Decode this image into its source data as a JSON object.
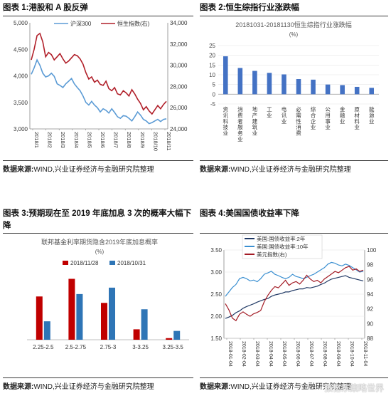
{
  "figures": {
    "f1": {
      "title": "图表 1:港股和 A 股反弹",
      "source_label": "数据来源:",
      "source_text": "WIND,兴业证券经济与金融研究院整理"
    },
    "f2": {
      "title": "图表 2:恒生综指行业涨跌幅",
      "source_label": "数据来源:",
      "source_text": "WIND,兴业证券经济与金融研究院整理"
    },
    "f3": {
      "title": "图表 3:预期现在至 2019 年底加息 3 次的概率大幅下降",
      "source_label": "数据来源:",
      "source_text": "WIND,兴业证券经济与金融研究院整理"
    },
    "f4": {
      "title": "图表 4:美国国债收益率下降",
      "source_label": "数据来源:",
      "source_text": "WIND,兴业证券经济与金融研究院整理"
    }
  },
  "watermark": "张忆东策略世界",
  "colors": {
    "blue": "#5b9bd5",
    "red": "#b1202a",
    "bar_red": "#c00000",
    "bar_blue": "#2e75b6",
    "navy": "#1f3864",
    "green_blue": "#3a8fd1",
    "dark_red": "#a31b25"
  },
  "chart_data": [
    {
      "type": "line",
      "title": "",
      "x_ticks": [
        "2018/1",
        "2018/2",
        "2018/3",
        "2018/4",
        "2018/5",
        "2018/6",
        "2018/7",
        "2018/8",
        "2018/9",
        "2018/10",
        "2018/11"
      ],
      "left_axis": {
        "ylim": [
          3000,
          5000
        ],
        "ticks": [
          "3,000",
          "3,500",
          "4,000",
          "4,500",
          "5,000"
        ]
      },
      "right_axis": {
        "ylim": [
          24000,
          34000
        ],
        "ticks": [
          "24,000",
          "26,000",
          "28,000",
          "30,000",
          "32,000",
          "34,000"
        ]
      },
      "series": [
        {
          "name": "沪深300",
          "axis": "left",
          "color": "#5b9bd5",
          "values": [
            4030,
            4150,
            4300,
            4200,
            4050,
            3980,
            4000,
            4050,
            3990,
            3850,
            3820,
            3780,
            3850,
            3900,
            3950,
            3850,
            3780,
            3720,
            3620,
            3500,
            3450,
            3520,
            3450,
            3400,
            3320,
            3380,
            3350,
            3300,
            3380,
            3310,
            3230,
            3200,
            3250,
            3240,
            3200,
            3150,
            3230,
            3320,
            3260,
            3180,
            3150,
            3100,
            3120,
            3150,
            3180,
            3140,
            3180,
            3190
          ]
        },
        {
          "name": "恒生指数(右)",
          "axis": "right",
          "color": "#b1202a",
          "values": [
            30500,
            31500,
            32800,
            33000,
            32200,
            30800,
            31200,
            31000,
            30500,
            30800,
            31100,
            30600,
            30200,
            30400,
            30700,
            31000,
            30900,
            30600,
            30100,
            29300,
            28700,
            28900,
            28400,
            28600,
            28200,
            28100,
            28500,
            27800,
            27600,
            27900,
            27300,
            27200,
            27600,
            27400,
            27100,
            27700,
            27300,
            26800,
            26400,
            25800,
            26100,
            25700,
            25400,
            25800,
            26200,
            25900,
            26300,
            26600
          ]
        }
      ]
    },
    {
      "type": "bar",
      "title": "20181031-20181130恒生综指行业涨跌幅",
      "ylabel": "(%)",
      "ylim": [
        -5,
        25
      ],
      "ticks": [
        "-5",
        "0",
        "5",
        "10",
        "15",
        "20",
        "25"
      ],
      "categories": [
        "资讯科技业",
        "消费者服务业",
        "地产建筑业",
        "工业",
        "电讯业",
        "必需性消费",
        "综合企业",
        "公用事业",
        "金融业",
        "原材料业",
        "能源业"
      ],
      "values": [
        19.5,
        13.5,
        12.0,
        11.0,
        10.2,
        7.8,
        7.5,
        5.0,
        4.7,
        3.8,
        3.3
      ],
      "color": "#4472c4"
    },
    {
      "type": "bar",
      "title": "联邦基金利率期货隐含2019年底加息概率",
      "ylabel": "(%)",
      "ylim": [
        0,
        40
      ],
      "categories": [
        "2.25-2.5",
        "2.5-2.75",
        "2.75-3",
        "3-3.25",
        "3.25-3.5"
      ],
      "legend_position": "top",
      "series": [
        {
          "name": "2018/11/28",
          "values": [
            27,
            38,
            23,
            6.5,
            1
          ]
        },
        {
          "name": "2018/10/31",
          "values": [
            11.5,
            28.5,
            32.5,
            19,
            5.5
          ]
        }
      ]
    },
    {
      "type": "line",
      "title": "",
      "x_ticks": [
        "2018-01-04",
        "2018-02-04",
        "2018-03-04",
        "2018-04-04",
        "2018-05-04",
        "2018-06-04",
        "2018-07-04",
        "2018-08-04",
        "2018-09-04",
        "2018-10-04",
        "2018-11-04"
      ],
      "left_axis": {
        "ylim": [
          1.5,
          3.5
        ],
        "ticks": [
          "1.50",
          "2.00",
          "2.50",
          "3.00",
          "3.50"
        ]
      },
      "right_axis": {
        "ylim": [
          86,
          100
        ],
        "ticks": [
          "88",
          "90",
          "92",
          "94",
          "96",
          "98",
          "100"
        ]
      },
      "series": [
        {
          "name": "美国:国债收益率:2年",
          "axis": "left",
          "color": "#1f3864",
          "values": [
            1.95,
            1.98,
            2.02,
            2.08,
            2.12,
            2.18,
            2.22,
            2.25,
            2.28,
            2.32,
            2.35,
            2.38,
            2.4,
            2.45,
            2.48,
            2.5,
            2.52,
            2.55,
            2.55,
            2.58,
            2.6,
            2.62,
            2.62,
            2.65,
            2.64,
            2.66,
            2.68,
            2.72,
            2.75,
            2.8,
            2.84,
            2.86,
            2.88,
            2.9,
            2.92,
            2.88,
            2.86,
            2.84,
            2.82,
            2.8
          ]
        },
        {
          "name": "美国:国债收益率:10年",
          "axis": "left",
          "color": "#3a8fd1",
          "values": [
            2.45,
            2.55,
            2.65,
            2.72,
            2.85,
            2.88,
            2.85,
            2.8,
            2.82,
            2.78,
            2.85,
            2.95,
            2.98,
            3.02,
            2.95,
            2.92,
            2.88,
            2.85,
            2.88,
            2.95,
            2.9,
            2.88,
            2.85,
            2.88,
            2.92,
            2.95,
            3.0,
            3.05,
            3.1,
            3.18,
            3.22,
            3.2,
            3.16,
            3.14,
            3.18,
            3.15,
            3.1,
            3.05,
            3.0,
            3.02
          ]
        },
        {
          "name": "美元指数(右)",
          "axis": "right",
          "color": "#a31b25",
          "values": [
            91.5,
            90.5,
            89.2,
            88.8,
            89.8,
            90.2,
            89.8,
            89.5,
            89.9,
            90.1,
            90.4,
            91.8,
            92.8,
            93.6,
            94.2,
            94.0,
            94.6,
            95.2,
            94.4,
            94.8,
            95.0,
            94.6,
            95.2,
            96.0,
            95.4,
            95.0,
            95.2,
            94.8,
            95.4,
            95.8,
            96.2,
            96.6,
            96.4,
            96.8,
            97.2,
            97.4,
            96.8,
            97.0,
            96.6,
            96.8
          ]
        }
      ]
    }
  ]
}
